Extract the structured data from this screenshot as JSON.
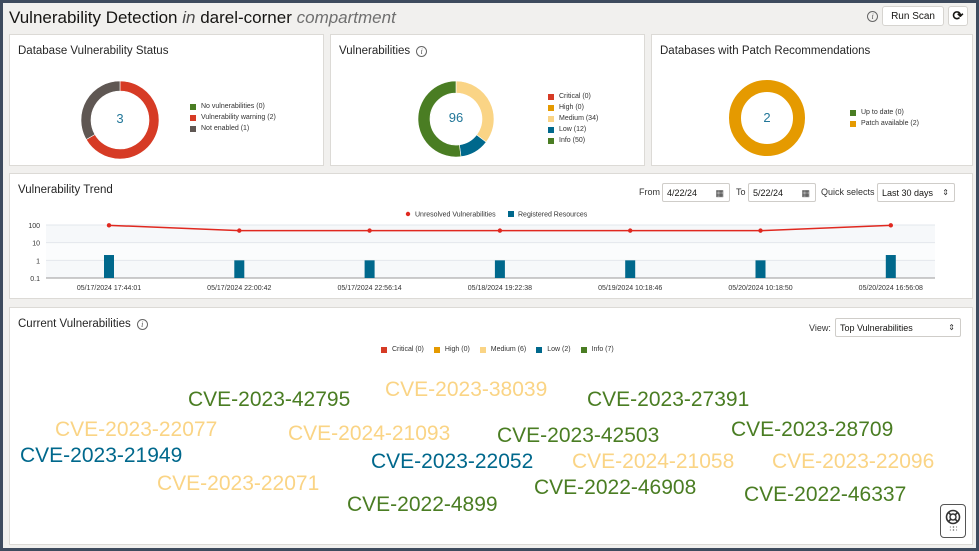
{
  "header": {
    "title_main": "Vulnerability Detection",
    "title_in": "in",
    "compartment_name": "darel-corner",
    "compartment_label": "compartment",
    "run_scan_label": "Run Scan",
    "info_icon": "info-icon",
    "refresh_icon": "refresh-icon"
  },
  "db_status": {
    "title": "Database Vulnerability Status",
    "total": "3",
    "legend": [
      {
        "label": "No vulnerabilities (0)",
        "value": 0,
        "color": "#4a7d23"
      },
      {
        "label": "Vulnerability warning (2)",
        "value": 2,
        "color": "#d63b25"
      },
      {
        "label": "Not enabled (1)",
        "value": 1,
        "color": "#5f5753"
      }
    ]
  },
  "vulnerabilities": {
    "title": "Vulnerabilities",
    "total": "96",
    "legend": [
      {
        "label": "Critical (0)",
        "value": 0,
        "color": "#d63b25"
      },
      {
        "label": "High (0)",
        "value": 0,
        "color": "#e59a00"
      },
      {
        "label": "Medium (34)",
        "value": 34,
        "color": "#fad485"
      },
      {
        "label": "Low (12)",
        "value": 12,
        "color": "#00688c"
      },
      {
        "label": "Info (50)",
        "value": 50,
        "color": "#4a7d23"
      }
    ]
  },
  "patch": {
    "title": "Databases with Patch Recommendations",
    "total": "2",
    "legend": [
      {
        "label": "Up to date (0)",
        "value": 0,
        "color": "#4a7d23"
      },
      {
        "label": "Patch available (2)",
        "value": 2,
        "color": "#e59a00"
      }
    ]
  },
  "trend": {
    "title": "Vulnerability Trend",
    "from_label": "From",
    "from_value": "4/22/24",
    "to_label": "To",
    "to_value": "5/22/24",
    "quick_label": "Quick selects",
    "quick_value": "Last 30 days"
  },
  "chart_data": {
    "type": "line",
    "title": "Vulnerability Trend",
    "yscale": "log",
    "ylim": [
      0.1,
      100
    ],
    "yticks": [
      "100",
      "10",
      "1",
      "0.1"
    ],
    "legend": [
      "Unresolved Vulnerabilities",
      "Registered Resources"
    ],
    "legend_position": "top-center",
    "categories": [
      "05/17/2024 17:44:01",
      "05/17/2024 22:00:42",
      "05/17/2024 22:56:14",
      "05/18/2024 19:22:38",
      "05/19/2024 10:18:46",
      "05/20/2024 10:18:50",
      "05/20/2024 16:56:08"
    ],
    "series": [
      {
        "name": "Unresolved Vulnerabilities",
        "type": "line",
        "color": "#e0281f",
        "values": [
          96,
          48,
          48,
          48,
          48,
          48,
          96
        ]
      },
      {
        "name": "Registered Resources",
        "type": "bar",
        "color": "#00688c",
        "values": [
          2,
          1,
          1,
          1,
          1,
          1,
          2
        ]
      }
    ]
  },
  "current": {
    "title": "Current Vulnerabilities",
    "view_label": "View:",
    "view_value": "Top Vulnerabilities",
    "legend": [
      {
        "label": "Critical (0)",
        "color": "#d63b25"
      },
      {
        "label": "High (0)",
        "color": "#e59a00"
      },
      {
        "label": "Medium (6)",
        "color": "#fad485"
      },
      {
        "label": "Low (2)",
        "color": "#00688c"
      },
      {
        "label": "Info (7)",
        "color": "#4a7d23"
      }
    ],
    "words": [
      {
        "text": "CVE-2023-42795",
        "severity": "Info",
        "color": "#4a7d23"
      },
      {
        "text": "CVE-2023-38039",
        "severity": "Medium",
        "color": "#fad485"
      },
      {
        "text": "CVE-2023-27391",
        "severity": "Info",
        "color": "#4a7d23"
      },
      {
        "text": "CVE-2023-22077",
        "severity": "Medium",
        "color": "#fad485"
      },
      {
        "text": "CVE-2024-21093",
        "severity": "Medium",
        "color": "#fad485"
      },
      {
        "text": "CVE-2023-42503",
        "severity": "Info",
        "color": "#4a7d23"
      },
      {
        "text": "CVE-2023-28709",
        "severity": "Info",
        "color": "#4a7d23"
      },
      {
        "text": "CVE-2023-21949",
        "severity": "Low",
        "color": "#00688c"
      },
      {
        "text": "CVE-2023-22052",
        "severity": "Low",
        "color": "#00688c"
      },
      {
        "text": "CVE-2024-21058",
        "severity": "Medium",
        "color": "#fad485"
      },
      {
        "text": "CVE-2023-22096",
        "severity": "Medium",
        "color": "#fad485"
      },
      {
        "text": "CVE-2023-22071",
        "severity": "Medium",
        "color": "#fad485"
      },
      {
        "text": "CVE-2022-46908",
        "severity": "Info",
        "color": "#4a7d23"
      },
      {
        "text": "CVE-2022-46337",
        "severity": "Info",
        "color": "#4a7d23"
      },
      {
        "text": "CVE-2022-4899",
        "severity": "Info",
        "color": "#4a7d23"
      }
    ]
  },
  "help_widget_icon": "lifebuoy-icon"
}
